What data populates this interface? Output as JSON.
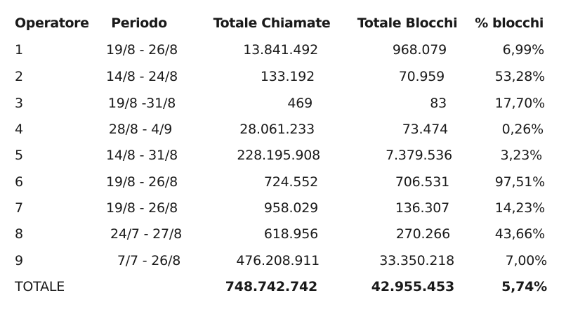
{
  "headers": {
    "operatore": "Operatore",
    "periodo": "Periodo",
    "totale_chiamate": "Totale Chiamate",
    "totale_blocchi": "Totale Blocchi",
    "pct_blocchi": "% blocchi"
  },
  "rows": [
    {
      "operatore": "1",
      "periodo": "19/8 - 26/8",
      "totale_chiamate": "13.841.492",
      "totale_blocchi": "968.079",
      "pct_blocchi": "6,99%"
    },
    {
      "operatore": "2",
      "periodo": "14/8 - 24/8",
      "totale_chiamate": "133.192",
      "totale_blocchi": "70.959",
      "pct_blocchi": "53,28%"
    },
    {
      "operatore": "3",
      "periodo": "19/8 -31/8",
      "totale_chiamate": "469",
      "totale_blocchi": "83",
      "pct_blocchi": "17,70%"
    },
    {
      "operatore": "4",
      "periodo": "28/8 - 4/9",
      "totale_chiamate": "28.061.233",
      "totale_blocchi": "73.474",
      "pct_blocchi": "0,26%"
    },
    {
      "operatore": "5",
      "periodo": "14/8 - 31/8",
      "totale_chiamate": "228.195.908",
      "totale_blocchi": "7.379.536",
      "pct_blocchi": "3,23%"
    },
    {
      "operatore": "6",
      "periodo": "19/8 - 26/8",
      "totale_chiamate": "724.552",
      "totale_blocchi": "706.531",
      "pct_blocchi": "97,51%"
    },
    {
      "operatore": "7",
      "periodo": "19/8 - 26/8",
      "totale_chiamate": "958.029",
      "totale_blocchi": "136.307",
      "pct_blocchi": "14,23%"
    },
    {
      "operatore": "8",
      "periodo": "24/7 - 27/8",
      "totale_chiamate": "618.956",
      "totale_blocchi": "270.266",
      "pct_blocchi": "43,66%"
    },
    {
      "operatore": "9",
      "periodo": "7/7 - 26/8",
      "totale_chiamate": "476.208.911",
      "totale_blocchi": "33.350.218",
      "pct_blocchi": "7,00%"
    }
  ],
  "totale": {
    "label": "TOTALE",
    "totale_chiamate": "748.742.742",
    "totale_blocchi": "42.955.453",
    "pct_blocchi": "5,74%"
  }
}
